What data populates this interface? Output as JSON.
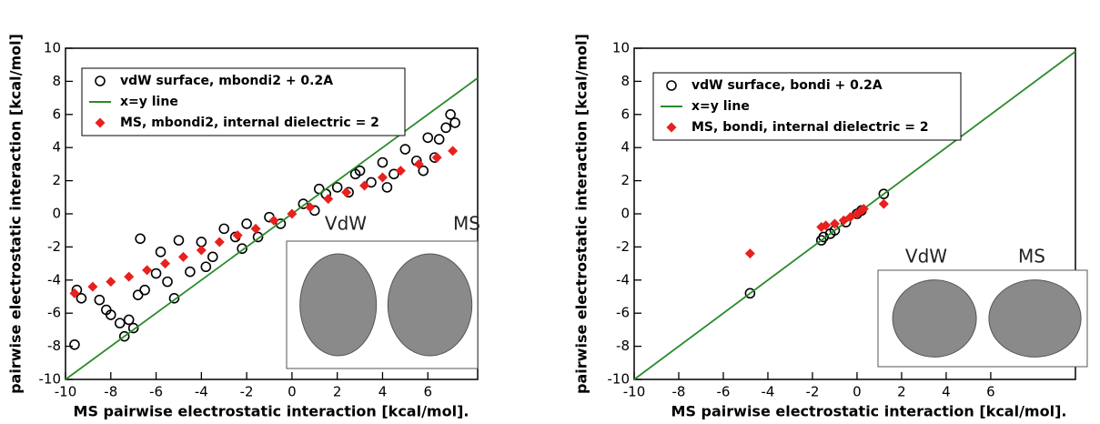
{
  "chart_data": [
    {
      "type": "scatter",
      "x_label": "MS pairwise electrostatic interaction [kcal/mol].",
      "y_label": "pairwise electrostatic interaction [kcal/mol]",
      "xlim": [
        -10,
        8.2
      ],
      "ylim": [
        -10,
        10
      ],
      "xticks": [
        -10,
        -8,
        -6,
        -4,
        -2,
        0,
        2,
        4,
        6
      ],
      "yticks": [
        -10,
        -8,
        -6,
        -4,
        -2,
        0,
        2,
        4,
        6,
        8,
        10
      ],
      "legend": "upper left",
      "inset_labels": [
        "VdW",
        "MS"
      ],
      "series": [
        {
          "name": "vdW surface, mbondi2 + 0.2A",
          "marker": "circle",
          "color": "#000000",
          "x": [
            -9.6,
            -9.5,
            -9.3,
            -8.5,
            -8.2,
            -8,
            -7.6,
            -7.4,
            -7.2,
            -7,
            -6.8,
            -6.7,
            -6.5,
            -6,
            -5.8,
            -5.5,
            -5.2,
            -5,
            -4.5,
            -4,
            -3.5,
            -3,
            -2.5,
            -2,
            -1.5,
            -1,
            -0.5,
            0.5,
            1,
            1.5,
            2,
            2.5,
            3,
            3.5,
            4,
            4.5,
            5,
            5.5,
            6,
            6.3,
            6.5,
            6.8,
            7,
            7.2,
            5.8,
            4.2,
            2.8,
            -3.8,
            -2.2,
            1.2
          ],
          "values": [
            -7.9,
            -4.6,
            -5.1,
            -5.2,
            -5.8,
            -6.1,
            -6.6,
            -7.4,
            -6.4,
            -6.9,
            -4.9,
            -1.5,
            -4.6,
            -3.6,
            -2.3,
            -4.1,
            -5.1,
            -1.6,
            -3.5,
            -1.7,
            -2.6,
            -0.9,
            -1.4,
            -0.6,
            -1.4,
            -0.2,
            -0.6,
            0.6,
            0.2,
            1.2,
            1.6,
            1.3,
            2.6,
            1.9,
            3.1,
            2.4,
            3.9,
            3.2,
            4.6,
            3.4,
            4.5,
            5.2,
            6,
            5.5,
            2.6,
            1.6,
            2.4,
            -3.2,
            -2.1,
            1.5
          ]
        },
        {
          "name": "x=y line",
          "marker": "line",
          "color": "#2a8a2a",
          "x": [
            -10,
            8.2
          ],
          "values": [
            -10,
            8.2
          ]
        },
        {
          "name": "MS, mbondi2, internal dielectric = 2",
          "marker": "diamond",
          "color": "#e8201e",
          "x": [
            -9.6,
            -8.8,
            -8,
            -7.2,
            -6.4,
            -5.6,
            -4.8,
            -4,
            -3.2,
            -2.4,
            -1.6,
            -0.8,
            0,
            0.8,
            1.6,
            2.4,
            3.2,
            4,
            4.8,
            5.6,
            6.4,
            7.1
          ],
          "values": [
            -4.8,
            -4.4,
            -4.1,
            -3.8,
            -3.4,
            -3.0,
            -2.6,
            -2.2,
            -1.7,
            -1.3,
            -0.9,
            -0.4,
            0,
            0.4,
            0.9,
            1.3,
            1.7,
            2.2,
            2.6,
            3.0,
            3.4,
            3.8
          ]
        }
      ]
    },
    {
      "type": "scatter",
      "x_label": "MS pairwise electrostatic interaction [kcal/mol].",
      "y_label": "pairwise electrostatic interaction [kcal/mol]",
      "xlim": [
        -10,
        9.8
      ],
      "ylim": [
        -10,
        10
      ],
      "xticks": [
        -10,
        -8,
        -6,
        -4,
        -2,
        0,
        2,
        4,
        6
      ],
      "yticks": [
        -10,
        -8,
        -6,
        -4,
        -2,
        0,
        2,
        4,
        6,
        8,
        10
      ],
      "legend": "upper left",
      "inset_labels": [
        "VdW",
        "MS"
      ],
      "series": [
        {
          "name": "vdW surface, bondi + 0.2A",
          "marker": "circle",
          "color": "#000000",
          "x": [
            -4.8,
            -1.6,
            -1.5,
            -1.2,
            -1,
            -0.5,
            0,
            0.2,
            1.2
          ],
          "values": [
            -4.8,
            -1.6,
            -1.4,
            -1.2,
            -1,
            -0.5,
            0,
            0.2,
            1.2
          ]
        },
        {
          "name": "x=y line",
          "marker": "line",
          "color": "#2a8a2a",
          "x": [
            -10,
            9.8
          ],
          "values": [
            -10,
            9.8
          ]
        },
        {
          "name": "MS, bondi, internal dielectric = 2",
          "marker": "diamond",
          "color": "#e8201e",
          "x": [
            -4.8,
            -1.6,
            -1.4,
            -1,
            -0.6,
            -0.3,
            0,
            0.2,
            0.3,
            1.2
          ],
          "values": [
            -2.4,
            -0.8,
            -0.7,
            -0.6,
            -0.4,
            -0.2,
            0,
            0.2,
            0.3,
            0.6
          ]
        }
      ]
    }
  ]
}
